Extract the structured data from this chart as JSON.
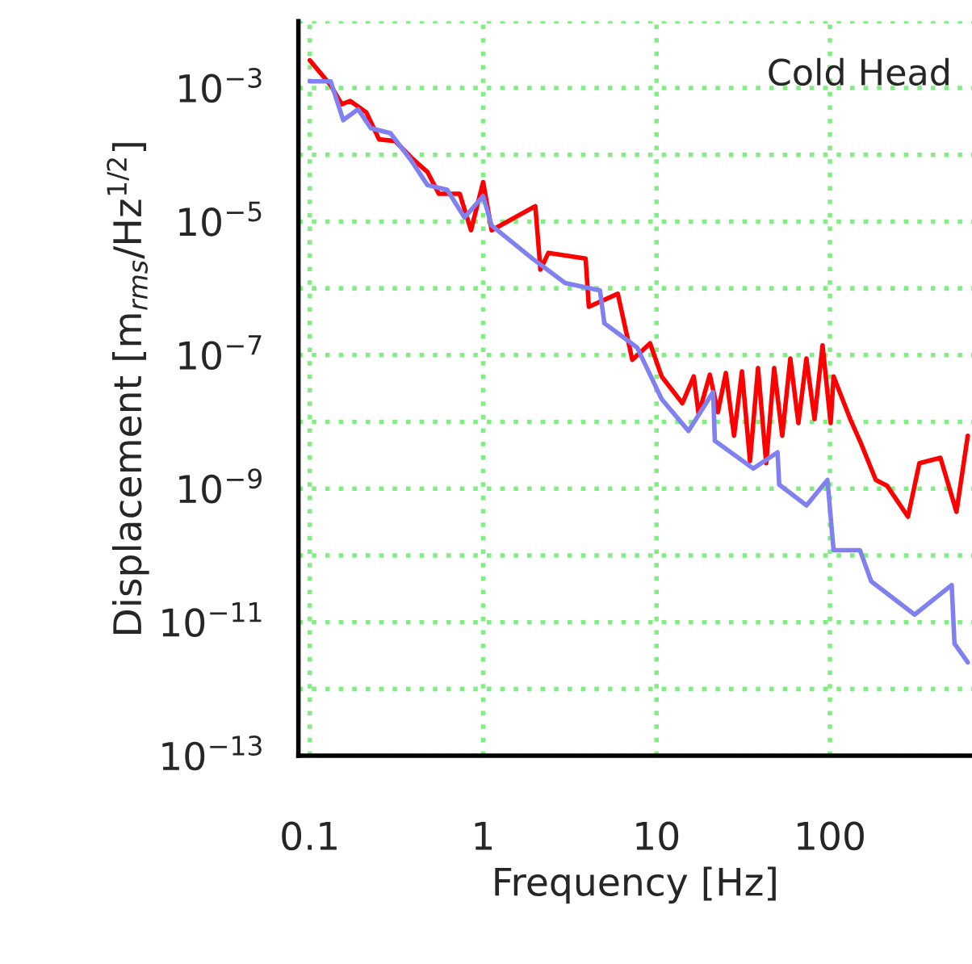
{
  "chart_data": {
    "type": "line",
    "title": "Cold Head",
    "xlabel": "Frequency [Hz]",
    "ylabel": "Displacement [m$_{rms}$/Hz$^{1/2}$]",
    "log": "xy",
    "grid": true,
    "legend": false,
    "xlim": [
      0.086,
      660
    ],
    "xticks": [
      0.1,
      1,
      10,
      100
    ],
    "ylim": [
      1e-13,
      0.01
    ],
    "yticks": [
      {
        "value": 1e-13,
        "label": "10$^{−13}$"
      },
      {
        "value": 1e-12,
        "label": null
      },
      {
        "value": 1e-11,
        "label": "10$^{−11}$"
      },
      {
        "value": 1e-10,
        "label": null
      },
      {
        "value": 1e-09,
        "label": "10$^{−9}$"
      },
      {
        "value": 1e-08,
        "label": null
      },
      {
        "value": 1e-07,
        "label": "10$^{−7}$"
      },
      {
        "value": 1e-06,
        "label": null
      },
      {
        "value": 1e-05,
        "label": "10$^{−5}$"
      },
      {
        "value": 0.0001,
        "label": null
      },
      {
        "value": 0.001,
        "label": "10$^{−3}$"
      },
      {
        "value": 0.01,
        "label": null
      }
    ],
    "series": [
      {
        "color": "#ff0000",
        "x": [
          0.1,
          0.132,
          0.153,
          0.171,
          0.212,
          0.251,
          0.311,
          0.386,
          0.478,
          0.555,
          0.733,
          0.851,
          1.0,
          1.12,
          2.0,
          2.14,
          2.38,
          3.9,
          4.07,
          5.98,
          7.25,
          9.18,
          10.7,
          14.1,
          16.4,
          17.5,
          20.3,
          22.6,
          25.1,
          28.0,
          31.1,
          34.6,
          38.5,
          42.9,
          47.7,
          53.1,
          59.1,
          65.8,
          73.2,
          81.5,
          90.7,
          101,
          105,
          131,
          149,
          184,
          214,
          282,
          328,
          434,
          537,
          624
        ],
        "values": [
          0.0026,
          0.0011,
          0.00057,
          0.00064,
          0.00043,
          0.00017,
          0.00016,
          9e-05,
          5.5e-05,
          2.6e-05,
          2.6e-05,
          7.4e-06,
          3.9e-05,
          7.4e-06,
          1.7e-05,
          1.9e-06,
          3.4e-06,
          2.8e-06,
          5.3e-07,
          8.3e-07,
          8.5e-08,
          1.5e-07,
          4.8e-08,
          1.9e-08,
          4.8e-08,
          1.3e-08,
          5.1e-08,
          1.4e-08,
          5.4e-08,
          6.2e-09,
          5.7e-08,
          2.6e-09,
          6.4e-08,
          2.4e-09,
          6.4e-08,
          6.2e-09,
          8.9e-08,
          9.6e-09,
          8.9e-08,
          1.1e-08,
          1.4e-07,
          9.6e-09,
          4.8e-08,
          1.1e-08,
          5.2e-09,
          1.35e-09,
          1.1e-09,
          3.8e-10,
          2.4e-09,
          2.9e-09,
          4.5e-10,
          6.2e-09
        ]
      },
      {
        "color": "#8080f0",
        "x": [
          0.1,
          0.132,
          0.156,
          0.19,
          0.225,
          0.292,
          0.386,
          0.478,
          0.62,
          0.78,
          1.0,
          1.12,
          1.92,
          2.97,
          4.72,
          5.0,
          7.73,
          10.7,
          15.3,
          21.2,
          21.7,
          36.1,
          49.9,
          51.0,
          73.3,
          96.8,
          105,
          149,
          173,
          308,
          504,
          523,
          624
        ],
        "values": [
          0.00126,
          0.00126,
          0.00033,
          0.00048,
          0.00025,
          0.00021,
          8.1e-05,
          3.5e-05,
          3e-05,
          1.15e-05,
          2.4e-05,
          8.7e-06,
          2.8e-06,
          1.2e-06,
          9.3e-07,
          3e-07,
          1.3e-07,
          2.2e-08,
          7.3e-09,
          2.8e-08,
          5.2e-09,
          2e-09,
          3.5e-09,
          1.15e-09,
          5.6e-10,
          1.35e-09,
          1.2e-10,
          1.2e-10,
          4.1e-11,
          1.3e-11,
          3.6e-11,
          4.8e-12,
          2.5e-12
        ]
      }
    ]
  }
}
